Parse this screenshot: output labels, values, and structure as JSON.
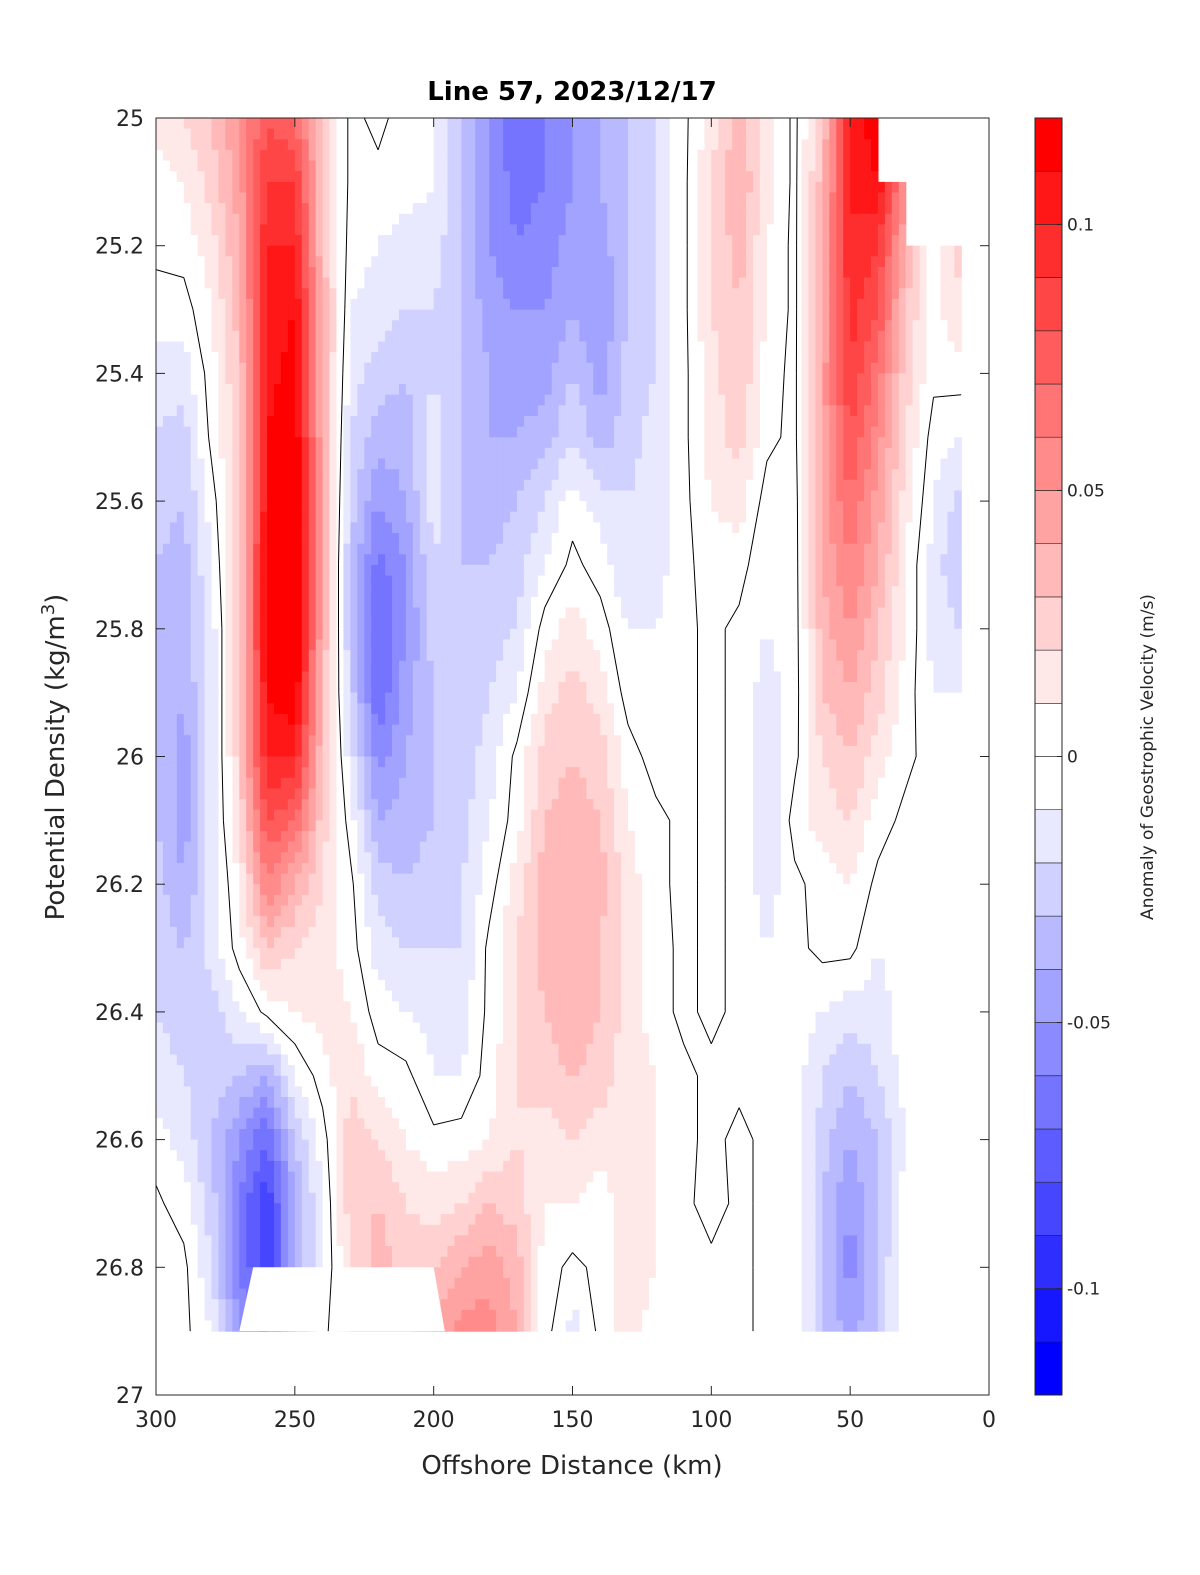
{
  "chart_data": {
    "type": "heatmap",
    "subtype": "filled-contour",
    "title": "Line 57, 2023/12/17",
    "xlabel": "Offshore Distance (km)",
    "ylabel": {
      "main": "Potential Density (kg/m",
      "sup": "3",
      "end": ")"
    },
    "colorbar_label": "Anomaly of Geostrophic Velocity (m/s)",
    "xlim": [
      300,
      0
    ],
    "ylim": [
      25,
      27
    ],
    "x_reversed": true,
    "y_reversed": true,
    "xticks": [
      300,
      250,
      200,
      150,
      100,
      50,
      0
    ],
    "xtick_labels": [
      "300",
      "250",
      "200",
      "150",
      "100",
      "50",
      "0"
    ],
    "yticks": [
      25,
      25.2,
      25.4,
      25.6,
      25.8,
      26,
      26.2,
      26.4,
      26.6,
      26.8,
      27
    ],
    "ytick_labels": [
      "25",
      "25.2",
      "25.4",
      "25.6",
      "25.8",
      "26",
      "26.2",
      "26.4",
      "26.6",
      "26.8",
      "27"
    ],
    "colorbar": {
      "range": [
        -0.12,
        0.12
      ],
      "level_step": 0.01,
      "ticks": [
        0.1,
        0.05,
        0,
        -0.05,
        -0.1
      ],
      "tick_labels": [
        "0.1",
        "0.05",
        "0",
        "-0.05",
        "-0.1"
      ],
      "positive_color": "#ff0000",
      "negative_color": "#0000ff",
      "neutral_color": "#ffffff"
    },
    "contour_levels_drawn": [
      0
    ],
    "grid": false,
    "x": [
      300,
      290,
      280,
      270,
      260,
      250,
      240,
      230,
      220,
      210,
      200,
      190,
      180,
      170,
      160,
      150,
      140,
      130,
      120,
      110,
      100,
      90,
      80,
      70,
      60,
      50,
      40,
      30,
      20,
      10
    ],
    "y": [
      25.0,
      25.1,
      25.2,
      25.3,
      25.4,
      25.5,
      25.6,
      25.7,
      25.8,
      25.9,
      26.0,
      26.1,
      26.2,
      26.3,
      26.4,
      26.5,
      26.6,
      26.7,
      26.8,
      26.9
    ],
    "values": [
      [
        0.015,
        0.02,
        0.03,
        0.05,
        0.08,
        0.07,
        0.03,
        -0.003,
        0.003,
        -0.005,
        -0.01,
        -0.03,
        -0.05,
        -0.07,
        -0.06,
        -0.05,
        -0.04,
        -0.03,
        -0.02,
        -0.003,
        0.015,
        0.035,
        0.015,
        -0.003,
        0.03,
        0.1,
        0.12,
        null,
        null,
        null
      ],
      [
        0.005,
        0.01,
        0.025,
        0.045,
        0.09,
        0.09,
        0.03,
        -0.003,
        -0.003,
        -0.005,
        -0.01,
        -0.03,
        -0.05,
        -0.065,
        -0.06,
        -0.05,
        -0.04,
        -0.03,
        -0.02,
        -0.003,
        0.02,
        0.04,
        0.015,
        -0.003,
        0.035,
        0.1,
        0.11,
        0.05,
        null,
        null
      ],
      [
        0.003,
        0.005,
        0.015,
        0.04,
        0.1,
        0.1,
        0.03,
        -0.005,
        -0.01,
        -0.015,
        -0.015,
        -0.03,
        -0.05,
        -0.06,
        -0.055,
        -0.045,
        -0.045,
        -0.03,
        -0.02,
        -0.003,
        0.02,
        0.035,
        0.01,
        -0.003,
        0.04,
        0.1,
        0.09,
        0.04,
        0.003,
        0.025
      ],
      [
        -0.005,
        -0.005,
        0.01,
        0.035,
        0.1,
        0.11,
        0.04,
        -0.01,
        -0.015,
        -0.02,
        -0.02,
        -0.03,
        -0.045,
        -0.05,
        -0.05,
        -0.04,
        -0.05,
        -0.03,
        -0.02,
        -0.003,
        0.02,
        0.03,
        0.01,
        -0.003,
        0.04,
        0.095,
        0.08,
        0.03,
        0.005,
        0.02
      ],
      [
        -0.015,
        -0.015,
        0.005,
        0.03,
        0.105,
        0.115,
        0.04,
        -0.015,
        -0.025,
        -0.03,
        -0.02,
        -0.03,
        -0.04,
        -0.045,
        -0.045,
        -0.03,
        -0.045,
        -0.025,
        -0.02,
        -0.003,
        0.015,
        0.03,
        0.005,
        -0.003,
        0.045,
        0.09,
        0.065,
        0.025,
        0.003,
        0.005
      ],
      [
        -0.02,
        -0.025,
        0.003,
        0.025,
        0.11,
        0.12,
        0.04,
        -0.02,
        -0.035,
        -0.035,
        -0.015,
        -0.03,
        -0.04,
        -0.04,
        -0.035,
        -0.02,
        -0.035,
        -0.025,
        -0.015,
        -0.003,
        0.015,
        0.025,
        0.003,
        -0.003,
        0.045,
        0.08,
        0.055,
        0.02,
        -0.005,
        -0.01
      ],
      [
        -0.025,
        -0.03,
        -0.005,
        0.025,
        0.11,
        0.125,
        0.04,
        -0.025,
        -0.05,
        -0.04,
        -0.015,
        -0.03,
        -0.035,
        -0.03,
        -0.02,
        -0.005,
        -0.015,
        -0.02,
        -0.015,
        -0.003,
        0.01,
        0.015,
        -0.005,
        -0.005,
        0.045,
        0.07,
        0.045,
        0.015,
        -0.01,
        -0.025
      ],
      [
        -0.03,
        -0.035,
        -0.01,
        0.025,
        0.115,
        0.125,
        0.04,
        -0.03,
        -0.065,
        -0.05,
        -0.02,
        -0.03,
        -0.03,
        -0.025,
        -0.01,
        0.003,
        -0.005,
        -0.02,
        -0.015,
        -0.003,
        0.005,
        0.005,
        -0.01,
        -0.005,
        0.04,
        0.06,
        0.04,
        0.01,
        -0.015,
        -0.03
      ],
      [
        -0.03,
        -0.035,
        -0.015,
        0.025,
        0.115,
        0.125,
        0.04,
        -0.03,
        -0.07,
        -0.05,
        -0.025,
        -0.03,
        -0.025,
        -0.02,
        0.005,
        0.015,
        0.005,
        -0.01,
        -0.01,
        -0.003,
        0.003,
        -0.003,
        -0.01,
        -0.005,
        0.035,
        0.05,
        0.03,
        0.01,
        -0.015,
        -0.02
      ],
      [
        -0.03,
        -0.04,
        -0.015,
        0.025,
        0.11,
        0.12,
        0.035,
        -0.025,
        -0.07,
        -0.045,
        -0.03,
        -0.03,
        -0.02,
        -0.01,
        0.015,
        0.025,
        0.015,
        -0.005,
        -0.01,
        -0.003,
        0.003,
        -0.003,
        -0.015,
        -0.005,
        0.03,
        0.04,
        0.025,
        0.005,
        -0.01,
        -0.01
      ],
      [
        -0.03,
        -0.045,
        -0.015,
        0.025,
        0.1,
        0.1,
        0.03,
        -0.015,
        -0.055,
        -0.04,
        -0.03,
        -0.025,
        -0.015,
        0.003,
        0.025,
        0.03,
        0.025,
        0.005,
        -0.005,
        -0.003,
        0.003,
        -0.003,
        -0.02,
        -0.003,
        0.02,
        0.03,
        0.015,
        0.003,
        -0.005,
        -0.003
      ],
      [
        -0.03,
        -0.045,
        -0.015,
        0.02,
        0.08,
        0.07,
        0.025,
        -0.005,
        -0.04,
        -0.035,
        -0.03,
        -0.025,
        -0.01,
        0.005,
        0.03,
        0.035,
        0.03,
        0.01,
        0.003,
        -0.003,
        0.003,
        -0.003,
        -0.02,
        0.005,
        0.015,
        0.02,
        0.005,
        -0.003,
        -0.003,
        -0.003
      ],
      [
        -0.025,
        -0.04,
        -0.015,
        0.01,
        0.06,
        0.04,
        0.02,
        0.003,
        -0.025,
        -0.03,
        -0.025,
        -0.02,
        -0.005,
        0.015,
        0.035,
        0.04,
        0.035,
        0.015,
        0.003,
        -0.003,
        0.003,
        -0.003,
        -0.015,
        -0.003,
        0.005,
        0.01,
        -0.003,
        -0.003,
        -0.003,
        -0.003
      ],
      [
        -0.025,
        -0.03,
        -0.015,
        0.005,
        0.03,
        0.02,
        0.015,
        0.005,
        -0.015,
        -0.02,
        -0.02,
        -0.02,
        0.003,
        0.02,
        0.035,
        0.04,
        0.03,
        0.015,
        0.005,
        -0.003,
        0.003,
        -0.003,
        -0.01,
        -0.003,
        0.003,
        0.003,
        -0.01,
        -0.005,
        -0.003,
        -0.003
      ],
      [
        -0.02,
        -0.025,
        -0.025,
        -0.01,
        0.003,
        0.01,
        0.015,
        0.01,
        -0.005,
        -0.01,
        -0.015,
        -0.015,
        0.003,
        0.02,
        0.03,
        0.04,
        0.03,
        0.015,
        0.005,
        -0.003,
        0.003,
        -0.003,
        -0.005,
        -0.005,
        -0.01,
        -0.015,
        -0.015,
        -0.005,
        -0.003,
        -0.003
      ],
      [
        -0.015,
        -0.02,
        -0.025,
        -0.03,
        -0.04,
        -0.01,
        0.005,
        0.02,
        0.005,
        0.003,
        -0.01,
        -0.01,
        0.005,
        0.02,
        0.025,
        0.03,
        0.025,
        0.015,
        0.01,
        0.003,
        -0.003,
        -0.003,
        -0.003,
        -0.005,
        -0.02,
        -0.03,
        -0.02,
        -0.005,
        -0.003,
        -0.003
      ],
      [
        -0.005,
        -0.015,
        -0.03,
        -0.05,
        -0.07,
        -0.03,
        -0.005,
        0.025,
        0.02,
        0.01,
        0.003,
        0.005,
        0.01,
        0.02,
        0.015,
        0.02,
        0.015,
        0.015,
        0.01,
        0.003,
        -0.003,
        0.003,
        -0.003,
        -0.005,
        -0.025,
        -0.04,
        -0.03,
        -0.01,
        -0.003,
        -0.003
      ],
      [
        0.002,
        -0.005,
        -0.025,
        -0.06,
        -0.09,
        -0.04,
        -0.01,
        0.025,
        0.03,
        0.02,
        0.015,
        0.02,
        0.03,
        0.025,
        0.01,
        0.01,
        0.005,
        0.015,
        0.01,
        0.003,
        -0.005,
        0.003,
        -0.003,
        -0.003,
        -0.03,
        -0.05,
        -0.03,
        -0.005,
        -0.003,
        -0.003
      ],
      [
        0.005,
        0.003,
        -0.02,
        -0.06,
        -0.09,
        -0.04,
        -0.01,
        0.02,
        0.035,
        0.025,
        0.03,
        0.04,
        0.045,
        0.035,
        0.005,
        -0.003,
        0.003,
        0.015,
        0.01,
        0.003,
        0.003,
        0.003,
        -0.003,
        -0.003,
        -0.03,
        -0.055,
        -0.03,
        -0.003,
        -0.003,
        -0.003
      ],
      [
        0.005,
        0.003,
        -0.01,
        -0.05,
        -0.06,
        -0.03,
        -0.005,
        0.02,
        0.03,
        0.025,
        0.04,
        0.055,
        0.055,
        0.04,
        0.005,
        -0.015,
        0.003,
        0.015,
        0.005,
        0.003,
        0.003,
        0.003,
        -0.003,
        -0.003,
        -0.03,
        -0.045,
        -0.03,
        -0.003,
        -0.003,
        -0.003
      ]
    ],
    "masked_regions": [
      [
        [
          270,
          26.9
        ],
        [
          265,
          26.8
        ],
        [
          200,
          26.8
        ],
        [
          196,
          26.9
        ]
      ]
    ]
  }
}
